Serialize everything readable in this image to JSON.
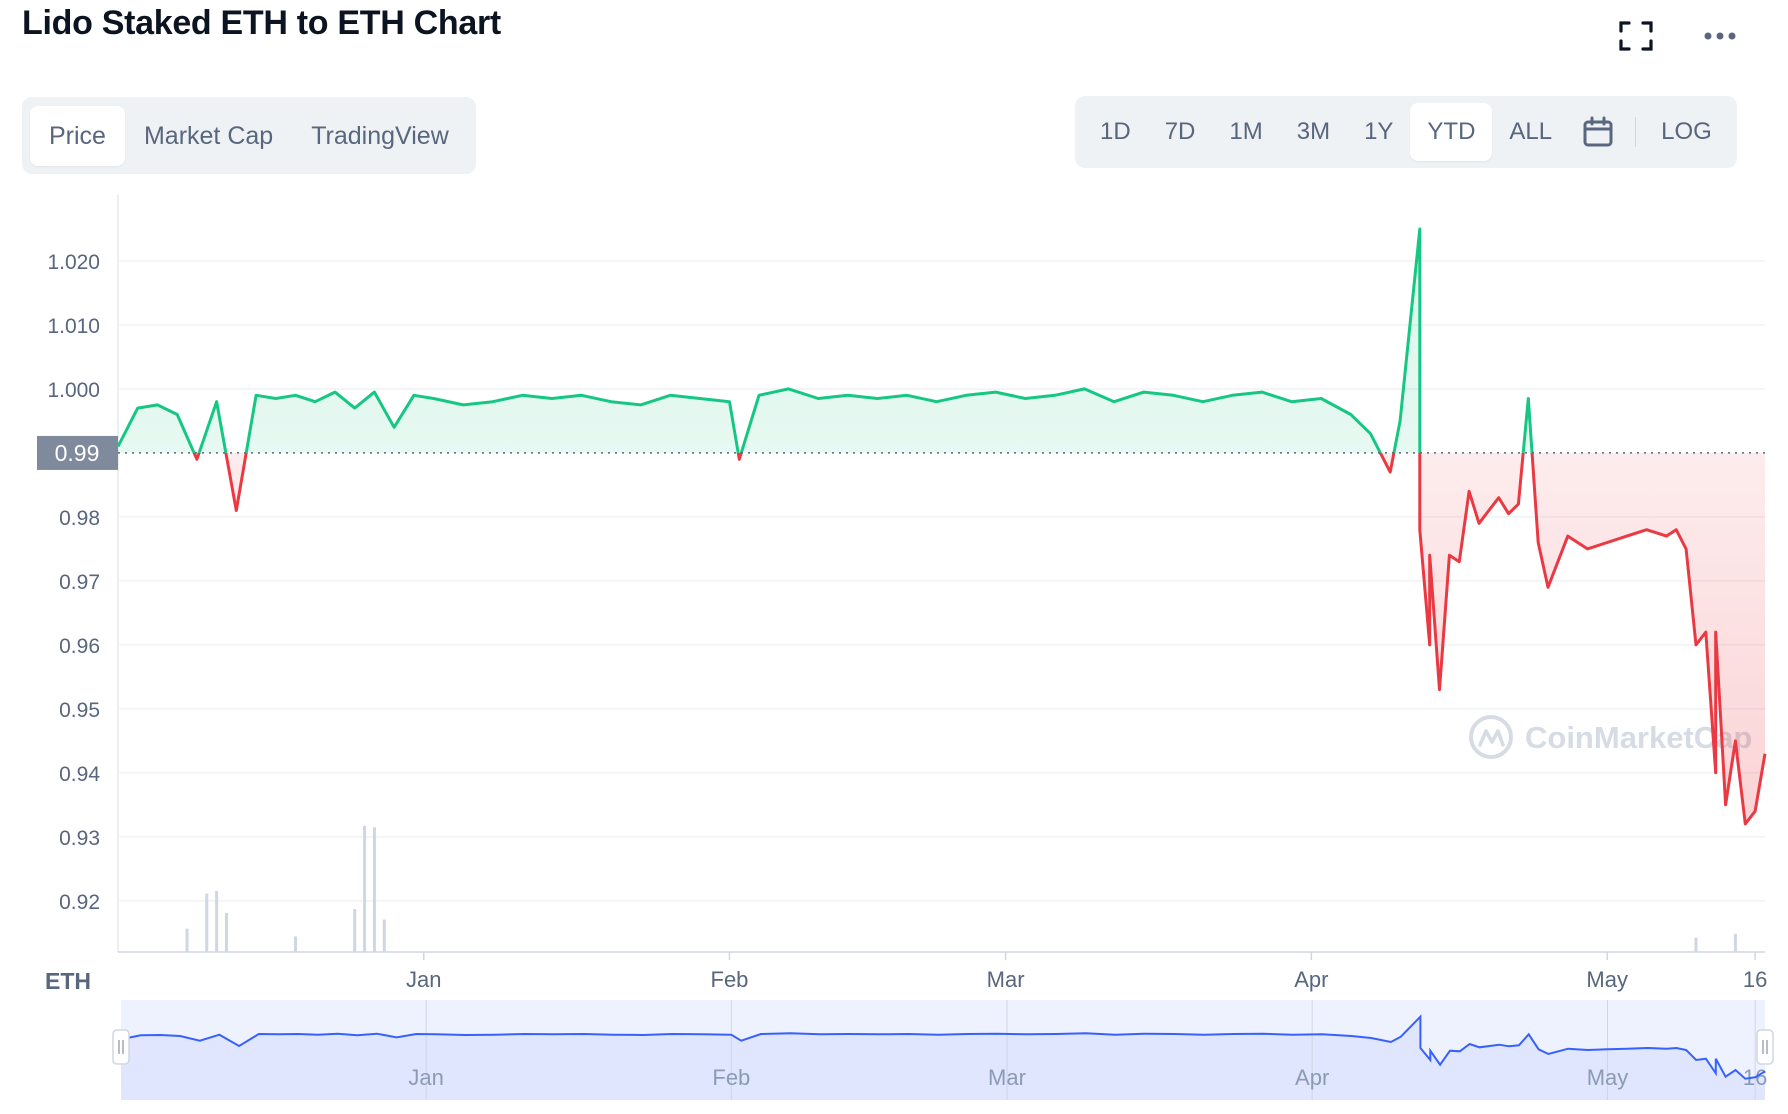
{
  "header": {
    "title": "Lido Staked ETH to ETH Chart",
    "fullscreen_icon": "fullscreen-icon",
    "more_icon": "more-dots-icon"
  },
  "chart_types": [
    "Price",
    "Market Cap",
    "TradingView"
  ],
  "chart_type_active": "Price",
  "ranges": [
    "1D",
    "7D",
    "1M",
    "3M",
    "1Y",
    "YTD",
    "ALL"
  ],
  "range_active": "YTD",
  "calendar_icon": "calendar-icon",
  "log_label": "LOG",
  "currency_label": "ETH",
  "watermark": "CoinMarketCap",
  "colors": {
    "up": "#16c784",
    "down": "#ea3943",
    "navigator": "#3861fb",
    "grid": "#eff2f5"
  },
  "chart_data": {
    "type": "line",
    "baseline": 0.99,
    "baseline_label": "0.99",
    "ylim": [
      0.912,
      1.03
    ],
    "yticks": [
      1.02,
      1.01,
      1.0,
      0.99,
      0.98,
      0.97,
      0.96,
      0.95,
      0.94,
      0.93,
      0.92
    ],
    "ytick_labels": [
      "1.020",
      "1.010",
      "1.000",
      "0.98",
      "0.97",
      "0.96",
      "0.95",
      "0.94",
      "0.93",
      "0.92"
    ],
    "xlim": [
      "2021-12-01",
      "2022-05-17"
    ],
    "xticks": [
      {
        "date": "2022-01-01",
        "label": "Jan"
      },
      {
        "date": "2022-02-01",
        "label": "Feb"
      },
      {
        "date": "2022-03-01",
        "label": "Mar"
      },
      {
        "date": "2022-04-01",
        "label": "Apr"
      },
      {
        "date": "2022-05-01",
        "label": "May"
      },
      {
        "date": "2022-05-16",
        "label": "16"
      }
    ],
    "series": [
      {
        "x": [
          "2021-12-01",
          "2021-12-03",
          "2021-12-05",
          "2021-12-07",
          "2021-12-09",
          "2021-12-11",
          "2021-12-13",
          "2021-12-15",
          "2021-12-17",
          "2021-12-19",
          "2021-12-21",
          "2021-12-23",
          "2021-12-25",
          "2021-12-27",
          "2021-12-29",
          "2021-12-31",
          "2022-01-02",
          "2022-01-05",
          "2022-01-08",
          "2022-01-11",
          "2022-01-14",
          "2022-01-17",
          "2022-01-20",
          "2022-01-23",
          "2022-01-26",
          "2022-01-29",
          "2022-02-01",
          "2022-02-02",
          "2022-02-04",
          "2022-02-07",
          "2022-02-10",
          "2022-02-13",
          "2022-02-16",
          "2022-02-19",
          "2022-02-22",
          "2022-02-25",
          "2022-02-28",
          "2022-03-03",
          "2022-03-06",
          "2022-03-09",
          "2022-03-12",
          "2022-03-15",
          "2022-03-18",
          "2022-03-21",
          "2022-03-24",
          "2022-03-27",
          "2022-03-30",
          "2022-04-02",
          "2022-04-05",
          "2022-04-07",
          "2022-04-09",
          "2022-04-10",
          "2022-04-12",
          "2022-04-12",
          "2022-04-13",
          "2022-04-13",
          "2022-04-14",
          "2022-04-15",
          "2022-04-16",
          "2022-04-17",
          "2022-04-18",
          "2022-04-20",
          "2022-04-21",
          "2022-04-22",
          "2022-04-23",
          "2022-04-24",
          "2022-04-25",
          "2022-04-27",
          "2022-04-29",
          "2022-05-01",
          "2022-05-03",
          "2022-05-05",
          "2022-05-07",
          "2022-05-08",
          "2022-05-09",
          "2022-05-10",
          "2022-05-11",
          "2022-05-12",
          "2022-05-12",
          "2022-05-13",
          "2022-05-14",
          "2022-05-15",
          "2022-05-16",
          "2022-05-17"
        ],
        "y": [
          0.991,
          0.997,
          0.9975,
          0.996,
          0.989,
          0.998,
          0.981,
          0.999,
          0.9985,
          0.999,
          0.998,
          0.9995,
          0.997,
          0.9995,
          0.994,
          0.999,
          0.9985,
          0.9975,
          0.998,
          0.999,
          0.9985,
          0.999,
          0.998,
          0.9975,
          0.999,
          0.9985,
          0.998,
          0.989,
          0.999,
          1.0,
          0.9985,
          0.999,
          0.9985,
          0.999,
          0.998,
          0.999,
          0.9995,
          0.9985,
          0.999,
          1.0,
          0.998,
          0.9995,
          0.999,
          0.998,
          0.999,
          0.9995,
          0.998,
          0.9985,
          0.996,
          0.993,
          0.987,
          0.995,
          1.025,
          0.978,
          0.96,
          0.974,
          0.953,
          0.974,
          0.973,
          0.984,
          0.979,
          0.983,
          0.9805,
          0.982,
          0.9985,
          0.976,
          0.969,
          0.977,
          0.975,
          0.976,
          0.977,
          0.978,
          0.977,
          0.978,
          0.975,
          0.96,
          0.962,
          0.94,
          0.962,
          0.935,
          0.945,
          0.932,
          0.934,
          0.943
        ]
      }
    ],
    "volume_ylim": [
      0,
      1
    ],
    "volume": [
      {
        "date": "2021-12-10",
        "value": 0.45
      },
      {
        "date": "2021-12-11",
        "value": 0.47
      },
      {
        "date": "2021-12-12",
        "value": 0.3
      },
      {
        "date": "2021-12-08",
        "value": 0.18
      },
      {
        "date": "2021-12-25",
        "value": 0.33
      },
      {
        "date": "2021-12-26",
        "value": 0.97
      },
      {
        "date": "2021-12-27",
        "value": 0.96
      },
      {
        "date": "2021-12-28",
        "value": 0.25
      },
      {
        "date": "2021-12-19",
        "value": 0.12
      },
      {
        "date": "2022-05-14",
        "value": 0.14
      },
      {
        "date": "2022-05-10",
        "value": 0.11
      }
    ],
    "navigator_ylim": [
      0.9,
      1.05
    ]
  }
}
